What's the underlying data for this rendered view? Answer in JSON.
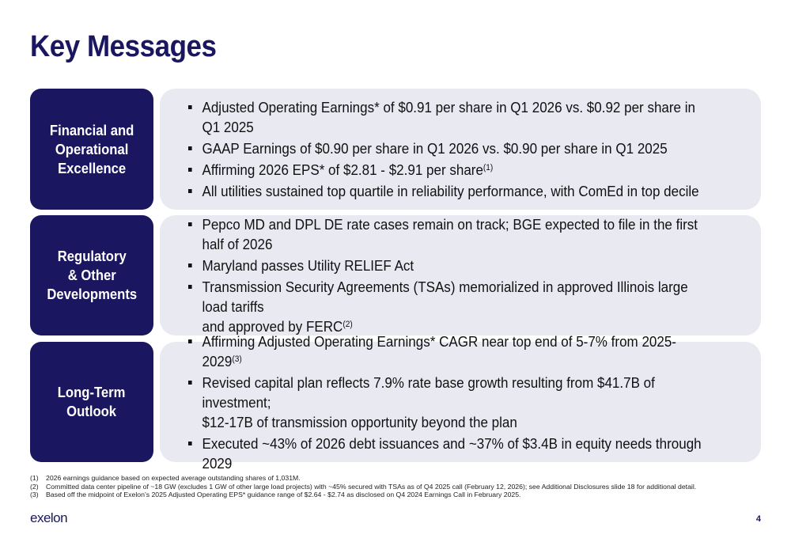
{
  "title": "Key Messages",
  "sections": [
    {
      "label": "Financial and\nOperational\nExcellence",
      "bullets": [
        {
          "text": "Adjusted Operating Earnings* of $0.91 per share in Q1 2026 vs. $0.92 per share in Q1 2025",
          "sup": ""
        },
        {
          "text": "GAAP Earnings of $0.90 per share in Q1 2026 vs. $0.90 per share in Q1 2025",
          "sup": ""
        },
        {
          "text": "Affirming 2026 EPS* of $2.81 - $2.91 per share",
          "sup": "(1)"
        },
        {
          "text": "All utilities sustained top quartile in reliability performance, with ComEd in top decile",
          "sup": ""
        }
      ]
    },
    {
      "label": "Regulatory\n& Other\nDevelopments",
      "bullets": [
        {
          "text": "Pepco MD and DPL DE rate cases remain on track; BGE expected to file in the first half of 2026",
          "sup": ""
        },
        {
          "text": "Maryland passes Utility RELIEF Act",
          "sup": ""
        },
        {
          "text": "Transmission Security Agreements (TSAs) memorialized in approved Illinois large load tariffs\nand approved by FERC",
          "sup": "(2)"
        }
      ]
    },
    {
      "label": "Long-Term\nOutlook",
      "bullets": [
        {
          "text": "Affirming Adjusted Operating Earnings* CAGR near top end of 5-7% from 2025-2029",
          "sup": "(3)"
        },
        {
          "text": "Revised capital plan reflects 7.9% rate base growth resulting from $41.7B of investment;\n$12-17B of transmission opportunity beyond the plan",
          "sup": ""
        },
        {
          "text": "Executed ~43% of 2026 debt issuances and ~37% of $3.4B in equity needs through 2029",
          "sup": ""
        }
      ]
    }
  ],
  "footnotes": [
    {
      "num": "(1)",
      "text": "2026 earnings guidance based on expected average outstanding shares of 1,031M."
    },
    {
      "num": "(2)",
      "text": "Committed data center pipeline of ~18 GW (excludes 1 GW of other large load projects) with ~45% secured with TSAs as of Q4 2025 call (February 12, 2026); see Additional Disclosures slide 18 for additional detail."
    },
    {
      "num": "(3)",
      "text": "Based off the midpoint of Exelon’s 2025 Adjusted Operating EPS* guidance range of $2.64 - $2.74 as disclosed on Q4 2024 Earnings Call in February 2025."
    }
  ],
  "logo": "exelon",
  "page_number": "4",
  "colors": {
    "brand_navy": "#1a1760",
    "panel_bg": "#e9e9f2"
  }
}
